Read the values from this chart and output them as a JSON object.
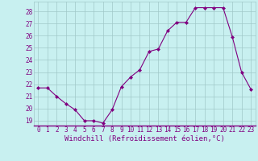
{
  "x": [
    0,
    1,
    2,
    3,
    4,
    5,
    6,
    7,
    8,
    9,
    10,
    11,
    12,
    13,
    14,
    15,
    16,
    17,
    18,
    19,
    20,
    21,
    22,
    23
  ],
  "y": [
    21.7,
    21.7,
    21.0,
    20.4,
    19.9,
    19.0,
    19.0,
    18.8,
    19.9,
    21.8,
    22.6,
    23.2,
    24.7,
    24.9,
    26.4,
    27.1,
    27.1,
    28.3,
    28.3,
    28.3,
    28.3,
    25.9,
    23.0,
    21.6
  ],
  "line_color": "#800080",
  "marker": "D",
  "marker_size": 2.0,
  "bg_color": "#c8f0f0",
  "grid_color": "#a0c8c8",
  "xlabel": "Windchill (Refroidissement éolien,°C)",
  "xlabel_color": "#800080",
  "tick_color": "#800080",
  "spine_color": "#800080",
  "ylim_min": 18.6,
  "ylim_max": 28.8,
  "yticks": [
    19,
    20,
    21,
    22,
    23,
    24,
    25,
    26,
    27,
    28
  ],
  "xlim_min": -0.5,
  "xlim_max": 23.5,
  "xticks": [
    0,
    1,
    2,
    3,
    4,
    5,
    6,
    7,
    8,
    9,
    10,
    11,
    12,
    13,
    14,
    15,
    16,
    17,
    18,
    19,
    20,
    21,
    22,
    23
  ],
  "font_size": 5.5,
  "xlabel_font_size": 6.5,
  "linewidth": 0.8
}
